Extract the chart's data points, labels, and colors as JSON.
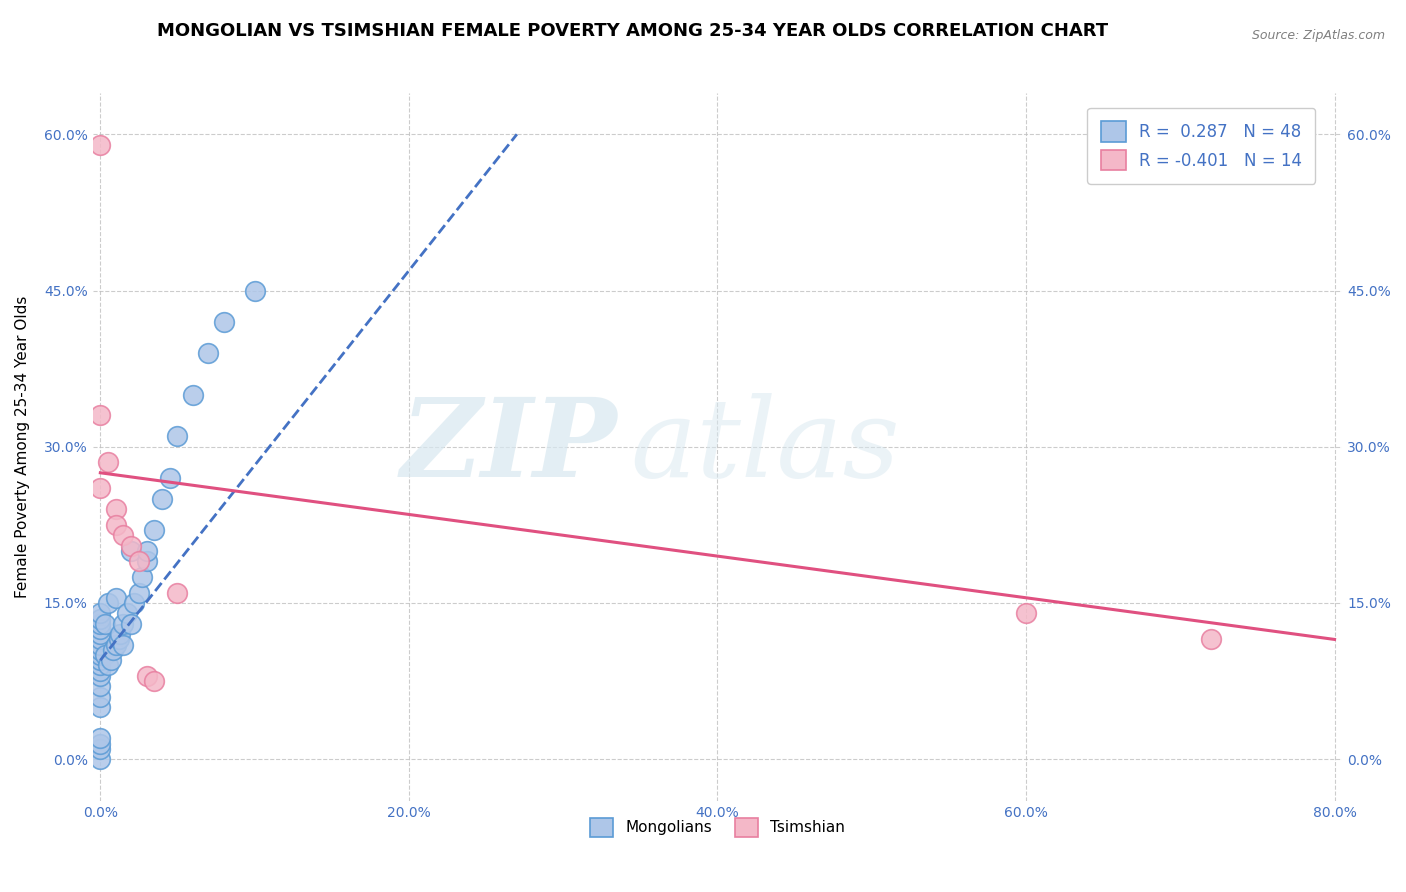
{
  "title": "MONGOLIAN VS TSIMSHIAN FEMALE POVERTY AMONG 25-34 YEAR OLDS CORRELATION CHART",
  "source_text": "Source: ZipAtlas.com",
  "ylabel": "Female Poverty Among 25-34 Year Olds",
  "xlim": [
    -0.005,
    0.805
  ],
  "ylim": [
    -0.04,
    0.64
  ],
  "xticks": [
    0.0,
    0.2,
    0.4,
    0.6,
    0.8
  ],
  "xtick_labels": [
    "0.0%",
    "20.0%",
    "40.0%",
    "60.0%",
    "80.0%"
  ],
  "yticks": [
    0.0,
    0.15,
    0.3,
    0.45,
    0.6
  ],
  "ytick_labels": [
    "0.0%",
    "15.0%",
    "30.0%",
    "45.0%",
    "60.0%"
  ],
  "mongolian_color": "#aec6e8",
  "tsimshian_color": "#f4b8c8",
  "mongolian_edge": "#5b9bd5",
  "tsimshian_edge": "#e87fa0",
  "trend_mongolian_color": "#4472c4",
  "trend_tsimshian_color": "#e05080",
  "R_mongolian": 0.287,
  "N_mongolian": 48,
  "R_tsimshian": -0.401,
  "N_tsimshian": 14,
  "legend_mongolian": "Mongolians",
  "legend_tsimshian": "Tsimshian",
  "watermark_zip": "ZIP",
  "watermark_atlas": "atlas",
  "title_fontsize": 13,
  "axis_label_fontsize": 11,
  "tick_fontsize": 10,
  "mongolian_x": [
    0.0,
    0.0,
    0.0,
    0.0,
    0.0,
    0.0,
    0.0,
    0.0,
    0.0,
    0.0,
    0.0,
    0.0,
    0.0,
    0.0,
    0.0,
    0.0,
    0.0,
    0.0,
    0.0,
    0.0,
    0.003,
    0.003,
    0.005,
    0.005,
    0.007,
    0.008,
    0.01,
    0.01,
    0.012,
    0.013,
    0.015,
    0.015,
    0.017,
    0.02,
    0.02,
    0.022,
    0.025,
    0.027,
    0.03,
    0.03,
    0.035,
    0.04,
    0.045,
    0.05,
    0.06,
    0.07,
    0.08,
    0.1
  ],
  "mongolian_y": [
    0.0,
    0.01,
    0.015,
    0.02,
    0.05,
    0.06,
    0.07,
    0.08,
    0.085,
    0.09,
    0.095,
    0.1,
    0.105,
    0.11,
    0.115,
    0.12,
    0.125,
    0.13,
    0.135,
    0.14,
    0.1,
    0.13,
    0.09,
    0.15,
    0.095,
    0.105,
    0.11,
    0.155,
    0.115,
    0.12,
    0.11,
    0.13,
    0.14,
    0.13,
    0.2,
    0.15,
    0.16,
    0.175,
    0.19,
    0.2,
    0.22,
    0.25,
    0.27,
    0.31,
    0.35,
    0.39,
    0.42,
    0.45
  ],
  "tsimshian_x": [
    0.0,
    0.0,
    0.0,
    0.005,
    0.01,
    0.01,
    0.015,
    0.02,
    0.025,
    0.03,
    0.035,
    0.05,
    0.6,
    0.72
  ],
  "tsimshian_y": [
    0.59,
    0.33,
    0.26,
    0.285,
    0.24,
    0.225,
    0.215,
    0.205,
    0.19,
    0.08,
    0.075,
    0.16,
    0.14,
    0.115
  ],
  "trend_mongolian_x0": 0.0,
  "trend_mongolian_y0": 0.095,
  "trend_mongolian_x1": 0.27,
  "trend_mongolian_y1": 0.6,
  "trend_tsimshian_x0": 0.0,
  "trend_tsimshian_y0": 0.275,
  "trend_tsimshian_x1": 0.8,
  "trend_tsimshian_y1": 0.115
}
